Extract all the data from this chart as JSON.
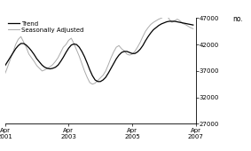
{
  "title": "",
  "ylabel": "no.",
  "ylim": [
    27000,
    47000
  ],
  "yticks": [
    27000,
    32000,
    37000,
    42000,
    47000
  ],
  "xtick_labels": [
    "Apr\n2001",
    "Apr\n2003",
    "Apr\n2005",
    "Apr\n2007"
  ],
  "xtick_positions": [
    0,
    24,
    48,
    72
  ],
  "trend_color": "#000000",
  "sa_color": "#aaaaaa",
  "background_color": "#ffffff",
  "legend_labels": [
    "Trend",
    "Seasonally Adjusted"
  ],
  "trend": [
    38000,
    38800,
    39600,
    40400,
    41200,
    41800,
    42200,
    42200,
    41900,
    41400,
    40800,
    40100,
    39300,
    38700,
    38100,
    37700,
    37500,
    37400,
    37500,
    37700,
    38100,
    38800,
    39600,
    40500,
    41300,
    41900,
    42100,
    42000,
    41500,
    40700,
    39700,
    38500,
    37200,
    36100,
    35300,
    35000,
    35000,
    35300,
    35800,
    36600,
    37500,
    38400,
    39300,
    40000,
    40500,
    40700,
    40700,
    40500,
    40300,
    40300,
    40600,
    41100,
    41800,
    42700,
    43500,
    44200,
    44800,
    45200,
    45600,
    45900,
    46100,
    46300,
    46400,
    46400,
    46400,
    46300,
    46200,
    46100,
    46000,
    45900,
    45800,
    45700
  ],
  "sa": [
    36500,
    37800,
    39200,
    40500,
    42000,
    43000,
    43500,
    42500,
    41500,
    40200,
    39500,
    38800,
    38000,
    37500,
    37000,
    37200,
    37500,
    37800,
    38200,
    38800,
    39500,
    40500,
    41500,
    42000,
    42800,
    43200,
    42200,
    41000,
    39800,
    38400,
    37000,
    35800,
    34800,
    34500,
    34700,
    35200,
    35700,
    36200,
    37000,
    38200,
    39500,
    40600,
    41500,
    41800,
    41200,
    40800,
    40200,
    40000,
    40200,
    40700,
    41500,
    42400,
    43500,
    44500,
    45200,
    45800,
    46200,
    46500,
    46800,
    47000,
    47300,
    47500,
    46800,
    46200,
    46500,
    46800,
    46500,
    46000,
    45800,
    45500,
    45200,
    45000
  ]
}
